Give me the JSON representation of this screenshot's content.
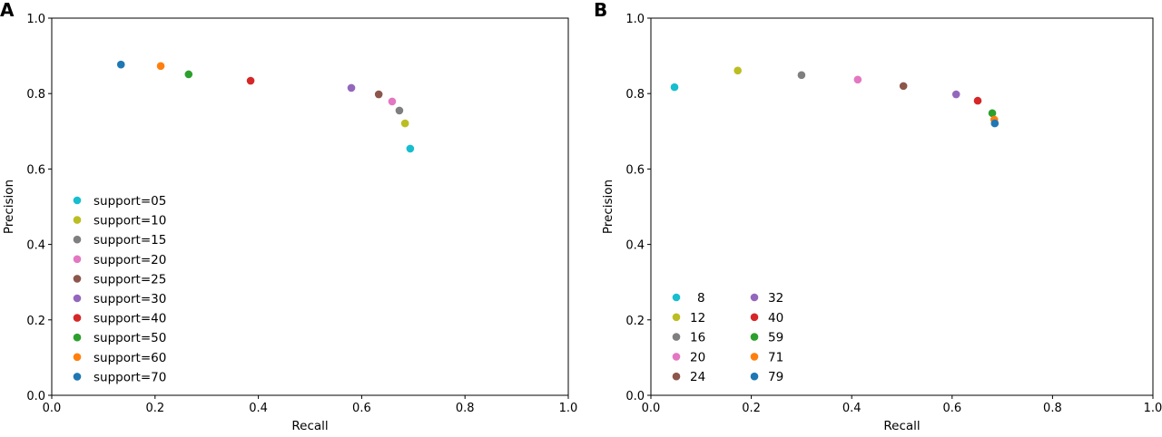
{
  "chart_data": [
    {
      "type": "scatter",
      "panel_label": "A",
      "xlabel": "Recall",
      "ylabel": "Precision",
      "xlim": [
        0,
        1
      ],
      "ylim": [
        0,
        1
      ],
      "xticks": [
        "0.0",
        "0.2",
        "0.4",
        "0.6",
        "0.8",
        "1.0"
      ],
      "yticks": [
        "0.0",
        "0.2",
        "0.4",
        "0.6",
        "0.8",
        "1.0"
      ],
      "grid": false,
      "legend_placement": "lower-left",
      "legend_columns": 1,
      "series": [
        {
          "name": "support=05",
          "color": "#17becf",
          "x": 0.694,
          "y": 0.654
        },
        {
          "name": "support=10",
          "color": "#bcbd22",
          "x": 0.684,
          "y": 0.721
        },
        {
          "name": "support=15",
          "color": "#7f7f7f",
          "x": 0.673,
          "y": 0.755
        },
        {
          "name": "support=20",
          "color": "#e377c2",
          "x": 0.659,
          "y": 0.779
        },
        {
          "name": "support=25",
          "color": "#8c564b",
          "x": 0.633,
          "y": 0.798
        },
        {
          "name": "support=30",
          "color": "#9467bd",
          "x": 0.58,
          "y": 0.815
        },
        {
          "name": "support=40",
          "color": "#d62728",
          "x": 0.385,
          "y": 0.834
        },
        {
          "name": "support=50",
          "color": "#2ca02c",
          "x": 0.265,
          "y": 0.851
        },
        {
          "name": "support=60",
          "color": "#ff7f0e",
          "x": 0.211,
          "y": 0.873
        },
        {
          "name": "support=70",
          "color": "#1f77b4",
          "x": 0.134,
          "y": 0.877
        }
      ]
    },
    {
      "type": "scatter",
      "panel_label": "B",
      "xlabel": "Recall",
      "ylabel": "Precision",
      "xlim": [
        0,
        1
      ],
      "ylim": [
        0,
        1
      ],
      "xticks": [
        "0.0",
        "0.2",
        "0.4",
        "0.6",
        "0.8",
        "1.0"
      ],
      "yticks": [
        "0.0",
        "0.2",
        "0.4",
        "0.6",
        "0.8",
        "1.0"
      ],
      "grid": false,
      "legend_placement": "lower-left",
      "legend_columns": 2,
      "series": [
        {
          "name": "8",
          "color": "#17becf",
          "x": 0.047,
          "y": 0.817
        },
        {
          "name": "12",
          "color": "#bcbd22",
          "x": 0.173,
          "y": 0.861
        },
        {
          "name": "16",
          "color": "#7f7f7f",
          "x": 0.3,
          "y": 0.849
        },
        {
          "name": "20",
          "color": "#e377c2",
          "x": 0.412,
          "y": 0.837
        },
        {
          "name": "24",
          "color": "#8c564b",
          "x": 0.503,
          "y": 0.82
        },
        {
          "name": "32",
          "color": "#9467bd",
          "x": 0.608,
          "y": 0.798
        },
        {
          "name": "40",
          "color": "#d62728",
          "x": 0.651,
          "y": 0.781
        },
        {
          "name": "59",
          "color": "#2ca02c",
          "x": 0.68,
          "y": 0.748
        },
        {
          "name": "71",
          "color": "#ff7f0e",
          "x": 0.684,
          "y": 0.731
        },
        {
          "name": "79",
          "color": "#1f77b4",
          "x": 0.685,
          "y": 0.721
        }
      ]
    }
  ]
}
